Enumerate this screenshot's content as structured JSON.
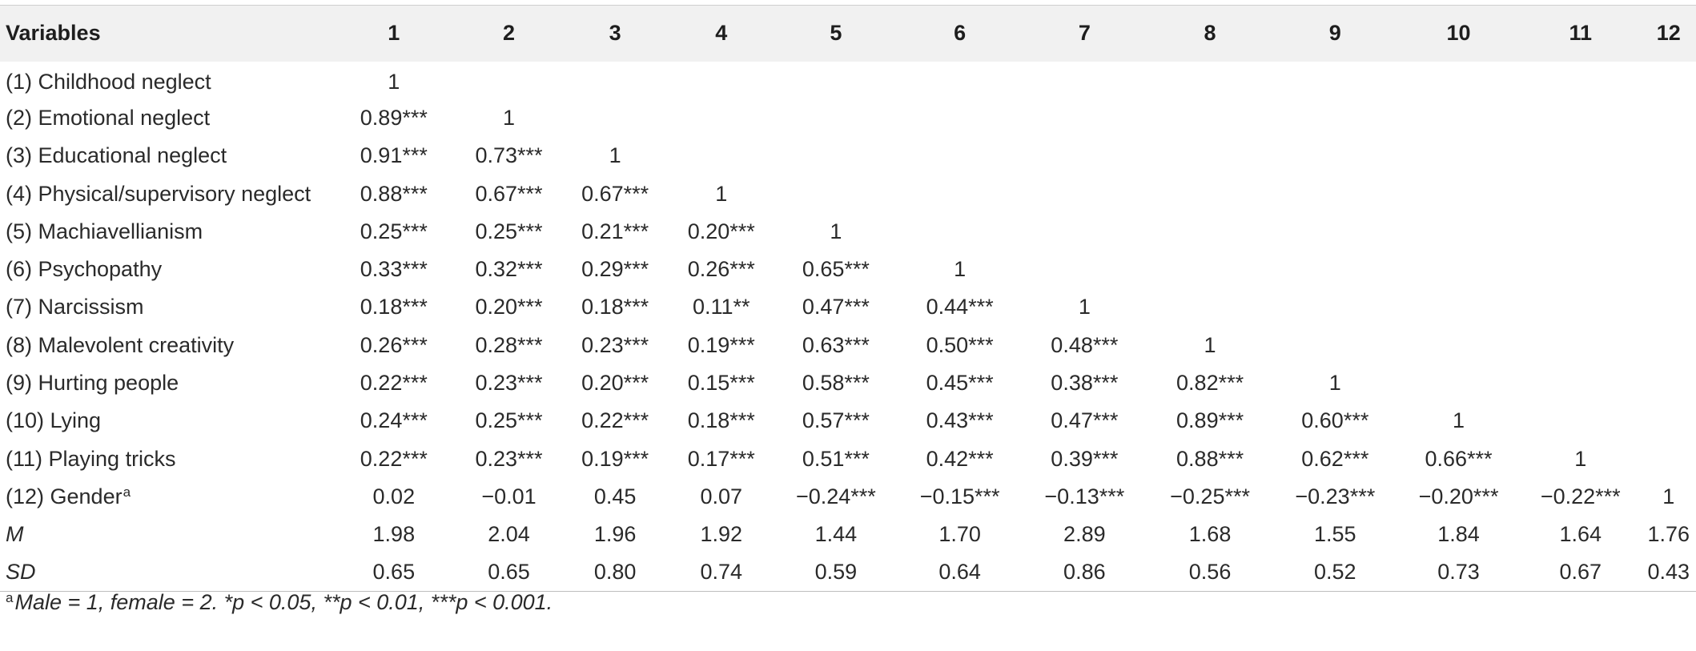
{
  "table": {
    "header": {
      "variables": "Variables",
      "cols": [
        "1",
        "2",
        "3",
        "4",
        "5",
        "6",
        "7",
        "8",
        "9",
        "10",
        "11",
        "12"
      ]
    },
    "rows": [
      {
        "label": "(1) Childhood neglect",
        "cells": [
          "1",
          "",
          "",
          "",
          "",
          "",
          "",
          "",
          "",
          "",
          "",
          ""
        ]
      },
      {
        "label": "(2) Emotional neglect",
        "cells": [
          "0.89***",
          "1",
          "",
          "",
          "",
          "",
          "",
          "",
          "",
          "",
          "",
          ""
        ]
      },
      {
        "label": "(3) Educational neglect",
        "cells": [
          "0.91***",
          "0.73***",
          "1",
          "",
          "",
          "",
          "",
          "",
          "",
          "",
          "",
          ""
        ]
      },
      {
        "label": "(4) Physical/supervisory neglect",
        "cells": [
          "0.88***",
          "0.67***",
          "0.67***",
          "1",
          "",
          "",
          "",
          "",
          "",
          "",
          "",
          ""
        ]
      },
      {
        "label": "(5) Machiavellianism",
        "cells": [
          "0.25***",
          "0.25***",
          "0.21***",
          "0.20***",
          "1",
          "",
          "",
          "",
          "",
          "",
          "",
          ""
        ]
      },
      {
        "label": "(6) Psychopathy",
        "cells": [
          "0.33***",
          "0.32***",
          "0.29***",
          "0.26***",
          "0.65***",
          "1",
          "",
          "",
          "",
          "",
          "",
          ""
        ]
      },
      {
        "label": "(7) Narcissism",
        "cells": [
          "0.18***",
          "0.20***",
          "0.18***",
          "0.11**",
          "0.47***",
          "0.44***",
          "1",
          "",
          "",
          "",
          "",
          ""
        ]
      },
      {
        "label": "(8) Malevolent creativity",
        "cells": [
          "0.26***",
          "0.28***",
          "0.23***",
          "0.19***",
          "0.63***",
          "0.50***",
          "0.48***",
          "1",
          "",
          "",
          "",
          ""
        ]
      },
      {
        "label": "(9) Hurting people",
        "cells": [
          "0.22***",
          "0.23***",
          "0.20***",
          "0.15***",
          "0.58***",
          "0.45***",
          "0.38***",
          "0.82***",
          "1",
          "",
          "",
          ""
        ]
      },
      {
        "label": "(10) Lying",
        "cells": [
          "0.24***",
          "0.25***",
          "0.22***",
          "0.18***",
          "0.57***",
          "0.43***",
          "0.47***",
          "0.89***",
          "0.60***",
          "1",
          "",
          ""
        ]
      },
      {
        "label": "(11) Playing tricks",
        "cells": [
          "0.22***",
          "0.23***",
          "0.19***",
          "0.17***",
          "0.51***",
          "0.42***",
          "0.39***",
          "0.88***",
          "0.62***",
          "0.66***",
          "1",
          ""
        ]
      },
      {
        "label": "(12) Gender",
        "label_sup": "a",
        "cells": [
          "0.02",
          "−0.01",
          "0.45",
          "0.07",
          "−0.24***",
          "−0.15***",
          "−0.13***",
          "−0.25***",
          "−0.23***",
          "−0.20***",
          "−0.22***",
          "1"
        ]
      }
    ],
    "stats": [
      {
        "label": "M",
        "cells": [
          "1.98",
          "2.04",
          "1.96",
          "1.92",
          "1.44",
          "1.70",
          "2.89",
          "1.68",
          "1.55",
          "1.84",
          "1.64",
          "1.76"
        ]
      },
      {
        "label": "SD",
        "cells": [
          "0.65",
          "0.65",
          "0.80",
          "0.74",
          "0.59",
          "0.64",
          "0.86",
          "0.56",
          "0.52",
          "0.73",
          "0.67",
          "0.43"
        ]
      }
    ]
  },
  "footnote": {
    "sup": "a",
    "text": "Male = 1, female = 2. *p < 0.05, **p < 0.01, ***p < 0.001."
  }
}
